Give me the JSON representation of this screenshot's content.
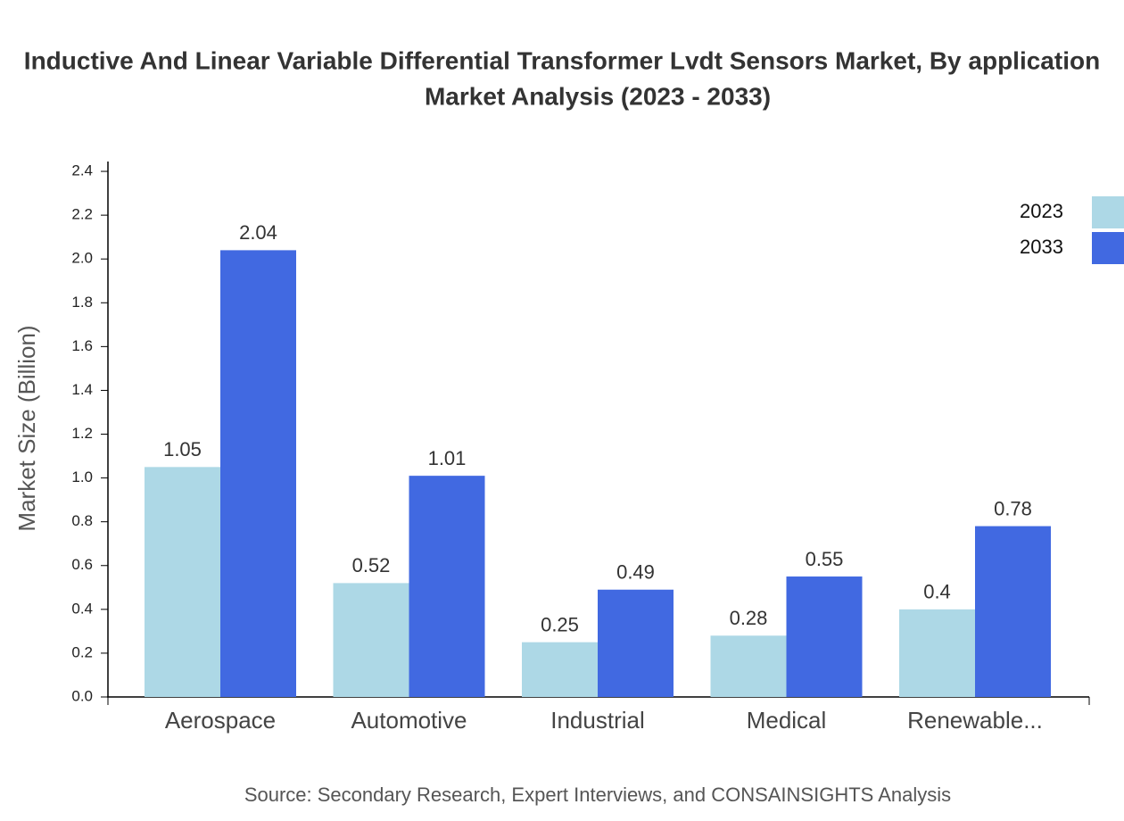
{
  "chart_data": {
    "type": "bar",
    "title": [
      "Inductive And Linear Variable Differential Transformer Lvdt Sensors Market, By application",
      "Market Analysis (2023 - 2033)"
    ],
    "y_label": "Market Size (Billion)",
    "source": "Source: Secondary Research, Expert Interviews, and CONSAINSIGHTS Analysis",
    "categories": [
      "Aerospace",
      "Automotive",
      "Industrial",
      "Medical",
      "Renewable..."
    ],
    "series": [
      {
        "name": "2023",
        "color": "#add8e6",
        "values": [
          1.05,
          0.52,
          0.25,
          0.28,
          0.4
        ]
      },
      {
        "name": "2033",
        "color": "#4169e1",
        "values": [
          2.04,
          1.01,
          0.49,
          0.55,
          0.78
        ]
      }
    ],
    "ylim": [
      0,
      2.445
    ],
    "yticks": [
      {
        "value": 0,
        "label": "0.0"
      },
      0.2,
      0.4,
      0.6,
      0.8,
      {
        "value": 1,
        "label": "1.0"
      },
      1.2,
      1.4,
      1.6,
      1.8,
      {
        "value": 2,
        "label": "2.0"
      },
      2.2,
      2.4
    ],
    "legend": "top-right"
  }
}
